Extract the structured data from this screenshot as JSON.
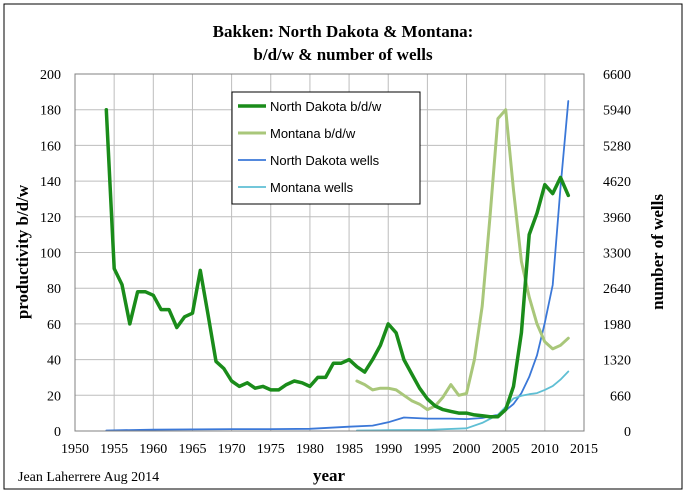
{
  "chart_data": {
    "type": "line",
    "title": [
      "Bakken: North Dakota & Montana:",
      "b/d/w & number of wells"
    ],
    "xlabel": "year",
    "ylabel": "productivity b/d/w",
    "y2label": "number of wells",
    "xlim": [
      1950,
      2015
    ],
    "ylim": [
      0,
      200
    ],
    "y2lim": [
      0,
      6600
    ],
    "x_ticks": [
      1950,
      1955,
      1960,
      1965,
      1970,
      1975,
      1980,
      1985,
      1990,
      1995,
      2000,
      2005,
      2010,
      2015
    ],
    "y_ticks": [
      0,
      20,
      40,
      60,
      80,
      100,
      120,
      140,
      160,
      180,
      200
    ],
    "y2_ticks": [
      0,
      660,
      1320,
      1980,
      2640,
      3300,
      3960,
      4620,
      5280,
      5940,
      6600
    ],
    "grid": true,
    "legend_position": "top-center",
    "credit": "Jean Laherrere Aug 2014",
    "series": [
      {
        "name": "North Dakota b/d/w",
        "axis": "left",
        "color": "#1a8c1a",
        "width": 3.5,
        "points": [
          [
            1954,
            180
          ],
          [
            1955,
            91
          ],
          [
            1956,
            82
          ],
          [
            1957,
            60
          ],
          [
            1958,
            78
          ],
          [
            1959,
            78
          ],
          [
            1960,
            76
          ],
          [
            1961,
            68
          ],
          [
            1962,
            68
          ],
          [
            1963,
            58
          ],
          [
            1964,
            64
          ],
          [
            1965,
            66
          ],
          [
            1966,
            90
          ],
          [
            1967,
            65
          ],
          [
            1968,
            39
          ],
          [
            1969,
            35
          ],
          [
            1970,
            28
          ],
          [
            1971,
            25
          ],
          [
            1972,
            27
          ],
          [
            1973,
            24
          ],
          [
            1974,
            25
          ],
          [
            1975,
            23
          ],
          [
            1976,
            23
          ],
          [
            1977,
            26
          ],
          [
            1978,
            28
          ],
          [
            1979,
            27
          ],
          [
            1980,
            25
          ],
          [
            1981,
            30
          ],
          [
            1982,
            30
          ],
          [
            1983,
            38
          ],
          [
            1984,
            38
          ],
          [
            1985,
            40
          ],
          [
            1986,
            36
          ],
          [
            1987,
            33
          ],
          [
            1988,
            40
          ],
          [
            1989,
            48
          ],
          [
            1990,
            60
          ],
          [
            1991,
            55
          ],
          [
            1992,
            40
          ],
          [
            1993,
            32
          ],
          [
            1994,
            24
          ],
          [
            1995,
            18
          ],
          [
            1996,
            14
          ],
          [
            1997,
            12
          ],
          [
            1998,
            11
          ],
          [
            1999,
            10
          ],
          [
            2000,
            10
          ],
          [
            2001,
            9
          ],
          [
            2002,
            8.5
          ],
          [
            2003,
            8
          ],
          [
            2004,
            8
          ],
          [
            2005,
            12
          ],
          [
            2006,
            25
          ],
          [
            2007,
            55
          ],
          [
            2008,
            110
          ],
          [
            2009,
            122
          ],
          [
            2010,
            138
          ],
          [
            2011,
            133
          ],
          [
            2012,
            142
          ],
          [
            2013,
            132
          ]
        ]
      },
      {
        "name": "Montana b/d/w",
        "axis": "left",
        "color": "#a9c77a",
        "width": 3,
        "points": [
          [
            1986,
            28
          ],
          [
            1987,
            26
          ],
          [
            1988,
            23
          ],
          [
            1989,
            24
          ],
          [
            1990,
            24
          ],
          [
            1991,
            23
          ],
          [
            1992,
            20
          ],
          [
            1993,
            17
          ],
          [
            1994,
            15
          ],
          [
            1995,
            12
          ],
          [
            1996,
            14
          ],
          [
            1997,
            19
          ],
          [
            1998,
            26
          ],
          [
            1999,
            20
          ],
          [
            2000,
            21
          ],
          [
            2001,
            40
          ],
          [
            2002,
            70
          ],
          [
            2003,
            120
          ],
          [
            2004,
            175
          ],
          [
            2005,
            180
          ],
          [
            2006,
            135
          ],
          [
            2007,
            95
          ],
          [
            2008,
            75
          ],
          [
            2009,
            60
          ],
          [
            2010,
            50
          ],
          [
            2011,
            46
          ],
          [
            2012,
            48
          ],
          [
            2013,
            52
          ]
        ]
      },
      {
        "name": "North Dakota wells",
        "axis": "right",
        "color": "#3b78d8",
        "width": 1.8,
        "points": [
          [
            1954,
            10
          ],
          [
            1960,
            25
          ],
          [
            1965,
            30
          ],
          [
            1970,
            35
          ],
          [
            1975,
            35
          ],
          [
            1980,
            40
          ],
          [
            1985,
            80
          ],
          [
            1988,
            100
          ],
          [
            1990,
            160
          ],
          [
            1992,
            250
          ],
          [
            1995,
            230
          ],
          [
            1998,
            230
          ],
          [
            2000,
            220
          ],
          [
            2002,
            240
          ],
          [
            2004,
            300
          ],
          [
            2005,
            380
          ],
          [
            2006,
            500
          ],
          [
            2007,
            700
          ],
          [
            2008,
            1000
          ],
          [
            2009,
            1400
          ],
          [
            2010,
            2000
          ],
          [
            2011,
            2700
          ],
          [
            2012,
            4500
          ],
          [
            2013,
            6100
          ]
        ]
      },
      {
        "name": "Montana wells",
        "axis": "right",
        "color": "#5fbfd4",
        "width": 1.8,
        "points": [
          [
            1986,
            10
          ],
          [
            1990,
            15
          ],
          [
            1995,
            20
          ],
          [
            2000,
            50
          ],
          [
            2002,
            150
          ],
          [
            2004,
            300
          ],
          [
            2005,
            450
          ],
          [
            2006,
            600
          ],
          [
            2007,
            650
          ],
          [
            2008,
            680
          ],
          [
            2009,
            700
          ],
          [
            2010,
            760
          ],
          [
            2011,
            830
          ],
          [
            2012,
            950
          ],
          [
            2013,
            1100
          ]
        ]
      }
    ]
  }
}
